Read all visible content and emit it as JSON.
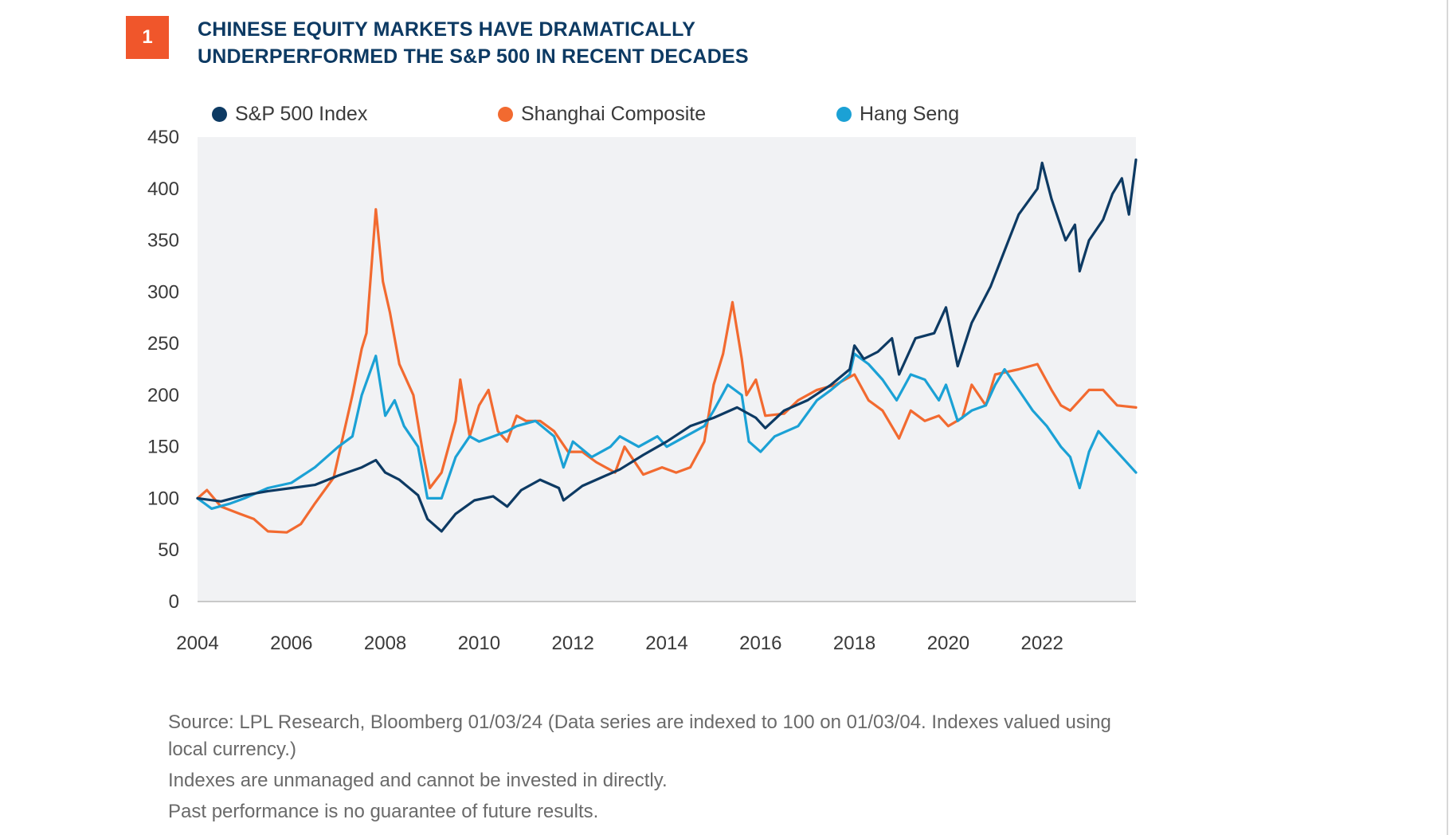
{
  "figure": {
    "number": "1"
  },
  "header": {
    "title_line1": "CHINESE EQUITY MARKETS HAVE DRAMATICALLY",
    "title_line2": "UNDERPERFORMED THE S&P 500 IN RECENT DECADES"
  },
  "footer": {
    "source": "Source: LPL Research, Bloomberg  01/03/24  (Data series are indexed to 100 on 01/03/04. Indexes valued using local currency.)",
    "note1": "Indexes are unmanaged and cannot be invested in directly.",
    "note2": "Past performance is no guarantee of future results."
  },
  "colors": {
    "plot_background": "#f1f2f4",
    "badge": "#f0562b",
    "title": "#0d3a63"
  },
  "chart_data": {
    "type": "line",
    "title": "",
    "xlabel": "",
    "ylabel": "",
    "xlim": [
      2004,
      2024
    ],
    "ylim": [
      0,
      450
    ],
    "x_ticks": [
      "2004",
      "2006",
      "2008",
      "2010",
      "2012",
      "2014",
      "2016",
      "2018",
      "2020",
      "2022"
    ],
    "y_ticks": [
      "0",
      "50",
      "100",
      "150",
      "200",
      "250",
      "300",
      "350",
      "400",
      "450"
    ],
    "grid": false,
    "legend_position": "top",
    "series": [
      {
        "name": "S&P 500 Index",
        "color": "#0d3a63",
        "points": [
          [
            2004.0,
            100
          ],
          [
            2004.5,
            97
          ],
          [
            2005.0,
            103
          ],
          [
            2005.5,
            107
          ],
          [
            2006.0,
            110
          ],
          [
            2006.5,
            113
          ],
          [
            2007.0,
            122
          ],
          [
            2007.5,
            130
          ],
          [
            2007.8,
            137
          ],
          [
            2008.0,
            125
          ],
          [
            2008.3,
            118
          ],
          [
            2008.7,
            103
          ],
          [
            2008.9,
            80
          ],
          [
            2009.2,
            68
          ],
          [
            2009.5,
            85
          ],
          [
            2009.9,
            98
          ],
          [
            2010.3,
            102
          ],
          [
            2010.6,
            92
          ],
          [
            2010.9,
            108
          ],
          [
            2011.3,
            118
          ],
          [
            2011.7,
            110
          ],
          [
            2011.8,
            98
          ],
          [
            2012.2,
            112
          ],
          [
            2012.6,
            120
          ],
          [
            2013.0,
            128
          ],
          [
            2013.5,
            142
          ],
          [
            2014.0,
            155
          ],
          [
            2014.5,
            170
          ],
          [
            2015.0,
            178
          ],
          [
            2015.5,
            188
          ],
          [
            2015.9,
            178
          ],
          [
            2016.1,
            168
          ],
          [
            2016.5,
            185
          ],
          [
            2017.0,
            195
          ],
          [
            2017.5,
            210
          ],
          [
            2017.9,
            225
          ],
          [
            2018.0,
            248
          ],
          [
            2018.2,
            235
          ],
          [
            2018.5,
            242
          ],
          [
            2018.8,
            255
          ],
          [
            2018.95,
            220
          ],
          [
            2019.3,
            255
          ],
          [
            2019.7,
            260
          ],
          [
            2019.95,
            285
          ],
          [
            2020.2,
            228
          ],
          [
            2020.5,
            270
          ],
          [
            2020.9,
            305
          ],
          [
            2021.2,
            340
          ],
          [
            2021.5,
            375
          ],
          [
            2021.9,
            400
          ],
          [
            2022.0,
            425
          ],
          [
            2022.2,
            390
          ],
          [
            2022.5,
            350
          ],
          [
            2022.7,
            365
          ],
          [
            2022.8,
            320
          ],
          [
            2023.0,
            350
          ],
          [
            2023.3,
            370
          ],
          [
            2023.5,
            395
          ],
          [
            2023.7,
            410
          ],
          [
            2023.85,
            375
          ],
          [
            2024.0,
            428
          ]
        ]
      },
      {
        "name": "Shanghai Composite",
        "color": "#f26a30",
        "points": [
          [
            2004.0,
            100
          ],
          [
            2004.2,
            108
          ],
          [
            2004.5,
            92
          ],
          [
            2004.9,
            85
          ],
          [
            2005.2,
            80
          ],
          [
            2005.5,
            68
          ],
          [
            2005.9,
            67
          ],
          [
            2006.2,
            75
          ],
          [
            2006.5,
            95
          ],
          [
            2006.9,
            120
          ],
          [
            2007.1,
            160
          ],
          [
            2007.3,
            200
          ],
          [
            2007.5,
            245
          ],
          [
            2007.6,
            260
          ],
          [
            2007.8,
            380
          ],
          [
            2007.95,
            310
          ],
          [
            2008.1,
            280
          ],
          [
            2008.3,
            230
          ],
          [
            2008.6,
            200
          ],
          [
            2008.8,
            145
          ],
          [
            2008.95,
            110
          ],
          [
            2009.2,
            125
          ],
          [
            2009.5,
            175
          ],
          [
            2009.6,
            215
          ],
          [
            2009.8,
            160
          ],
          [
            2010.0,
            190
          ],
          [
            2010.2,
            205
          ],
          [
            2010.4,
            165
          ],
          [
            2010.6,
            155
          ],
          [
            2010.8,
            180
          ],
          [
            2011.0,
            175
          ],
          [
            2011.3,
            175
          ],
          [
            2011.6,
            165
          ],
          [
            2011.9,
            145
          ],
          [
            2012.2,
            145
          ],
          [
            2012.5,
            135
          ],
          [
            2012.9,
            125
          ],
          [
            2013.1,
            150
          ],
          [
            2013.5,
            123
          ],
          [
            2013.9,
            130
          ],
          [
            2014.2,
            125
          ],
          [
            2014.5,
            130
          ],
          [
            2014.8,
            155
          ],
          [
            2015.0,
            210
          ],
          [
            2015.2,
            240
          ],
          [
            2015.4,
            290
          ],
          [
            2015.6,
            235
          ],
          [
            2015.7,
            200
          ],
          [
            2015.9,
            215
          ],
          [
            2016.1,
            180
          ],
          [
            2016.5,
            182
          ],
          [
            2016.8,
            195
          ],
          [
            2017.2,
            205
          ],
          [
            2017.6,
            210
          ],
          [
            2018.0,
            220
          ],
          [
            2018.3,
            195
          ],
          [
            2018.6,
            185
          ],
          [
            2018.95,
            158
          ],
          [
            2019.2,
            185
          ],
          [
            2019.5,
            175
          ],
          [
            2019.8,
            180
          ],
          [
            2020.0,
            170
          ],
          [
            2020.3,
            178
          ],
          [
            2020.5,
            210
          ],
          [
            2020.8,
            190
          ],
          [
            2021.0,
            220
          ],
          [
            2021.5,
            225
          ],
          [
            2021.9,
            230
          ],
          [
            2022.2,
            205
          ],
          [
            2022.4,
            190
          ],
          [
            2022.6,
            185
          ],
          [
            2022.8,
            195
          ],
          [
            2023.0,
            205
          ],
          [
            2023.3,
            205
          ],
          [
            2023.6,
            190
          ],
          [
            2024.0,
            188
          ]
        ]
      },
      {
        "name": "Hang Seng",
        "color": "#1ba1d5",
        "points": [
          [
            2004.0,
            100
          ],
          [
            2004.3,
            90
          ],
          [
            2004.7,
            95
          ],
          [
            2005.0,
            100
          ],
          [
            2005.5,
            110
          ],
          [
            2006.0,
            115
          ],
          [
            2006.5,
            130
          ],
          [
            2007.0,
            150
          ],
          [
            2007.3,
            160
          ],
          [
            2007.5,
            200
          ],
          [
            2007.8,
            238
          ],
          [
            2008.0,
            180
          ],
          [
            2008.2,
            195
          ],
          [
            2008.4,
            170
          ],
          [
            2008.7,
            150
          ],
          [
            2008.9,
            100
          ],
          [
            2009.2,
            100
          ],
          [
            2009.5,
            140
          ],
          [
            2009.8,
            160
          ],
          [
            2010.0,
            155
          ],
          [
            2010.3,
            160
          ],
          [
            2010.6,
            165
          ],
          [
            2010.8,
            170
          ],
          [
            2011.2,
            175
          ],
          [
            2011.6,
            160
          ],
          [
            2011.8,
            130
          ],
          [
            2012.0,
            155
          ],
          [
            2012.4,
            140
          ],
          [
            2012.8,
            150
          ],
          [
            2013.0,
            160
          ],
          [
            2013.4,
            150
          ],
          [
            2013.8,
            160
          ],
          [
            2014.0,
            150
          ],
          [
            2014.4,
            160
          ],
          [
            2014.8,
            170
          ],
          [
            2015.0,
            185
          ],
          [
            2015.3,
            210
          ],
          [
            2015.6,
            200
          ],
          [
            2015.75,
            155
          ],
          [
            2016.0,
            145
          ],
          [
            2016.3,
            160
          ],
          [
            2016.8,
            170
          ],
          [
            2017.2,
            195
          ],
          [
            2017.5,
            205
          ],
          [
            2017.9,
            220
          ],
          [
            2018.0,
            240
          ],
          [
            2018.3,
            230
          ],
          [
            2018.6,
            215
          ],
          [
            2018.9,
            195
          ],
          [
            2019.2,
            220
          ],
          [
            2019.5,
            215
          ],
          [
            2019.8,
            195
          ],
          [
            2019.95,
            210
          ],
          [
            2020.2,
            175
          ],
          [
            2020.5,
            185
          ],
          [
            2020.8,
            190
          ],
          [
            2021.0,
            210
          ],
          [
            2021.2,
            225
          ],
          [
            2021.5,
            205
          ],
          [
            2021.8,
            185
          ],
          [
            2022.1,
            170
          ],
          [
            2022.4,
            150
          ],
          [
            2022.6,
            140
          ],
          [
            2022.8,
            110
          ],
          [
            2023.0,
            145
          ],
          [
            2023.2,
            165
          ],
          [
            2023.5,
            150
          ],
          [
            2023.8,
            135
          ],
          [
            2024.0,
            125
          ]
        ]
      }
    ]
  }
}
